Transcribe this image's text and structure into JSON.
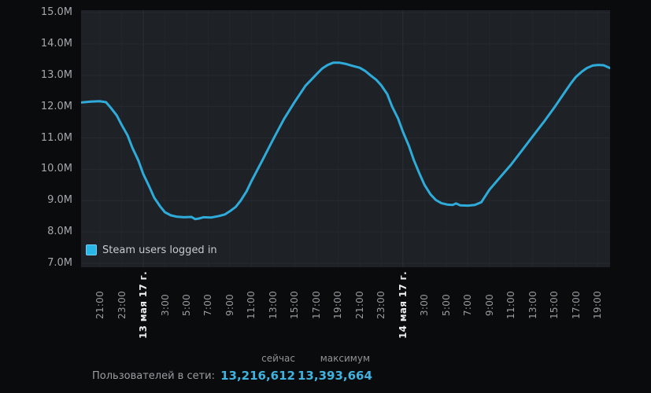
{
  "chart_data": {
    "type": "line",
    "title": "",
    "legend": {
      "label": "Steam users logged in",
      "position": "bottom-left-inside"
    },
    "series": [
      {
        "name": "Steam users logged in",
        "color": "#2fabda",
        "unit": "millions of users",
        "points": [
          [
            0,
            12.13
          ],
          [
            0.9,
            12.16
          ],
          [
            1.75,
            12.17
          ],
          [
            2.3,
            12.14
          ],
          [
            2.75,
            11.96
          ],
          [
            3.3,
            11.72
          ],
          [
            3.75,
            11.42
          ],
          [
            4.3,
            11.08
          ],
          [
            4.75,
            10.68
          ],
          [
            5.3,
            10.28
          ],
          [
            5.75,
            9.85
          ],
          [
            6.3,
            9.45
          ],
          [
            6.75,
            9.1
          ],
          [
            7.3,
            8.82
          ],
          [
            7.75,
            8.63
          ],
          [
            8.3,
            8.53
          ],
          [
            8.8,
            8.49
          ],
          [
            9.5,
            8.47
          ],
          [
            10.2,
            8.48
          ],
          [
            10.55,
            8.41
          ],
          [
            10.9,
            8.43
          ],
          [
            11.3,
            8.47
          ],
          [
            12,
            8.46
          ],
          [
            12.75,
            8.51
          ],
          [
            13.3,
            8.56
          ],
          [
            13.75,
            8.66
          ],
          [
            14.3,
            8.8
          ],
          [
            14.75,
            9.0
          ],
          [
            15.3,
            9.3
          ],
          [
            15.75,
            9.62
          ],
          [
            16.75,
            10.28
          ],
          [
            17.75,
            10.95
          ],
          [
            18.75,
            11.6
          ],
          [
            19.75,
            12.15
          ],
          [
            20.75,
            12.67
          ],
          [
            21.4,
            12.9
          ],
          [
            21.75,
            13.03
          ],
          [
            22.3,
            13.22
          ],
          [
            22.8,
            13.33
          ],
          [
            23.3,
            13.4
          ],
          [
            23.9,
            13.4
          ],
          [
            24.5,
            13.36
          ],
          [
            25.1,
            13.3
          ],
          [
            25.75,
            13.24
          ],
          [
            26.3,
            13.13
          ],
          [
            26.75,
            13.0
          ],
          [
            27.3,
            12.85
          ],
          [
            27.75,
            12.68
          ],
          [
            28.3,
            12.4
          ],
          [
            28.75,
            12.0
          ],
          [
            29.3,
            11.62
          ],
          [
            29.75,
            11.2
          ],
          [
            30.3,
            10.75
          ],
          [
            30.75,
            10.3
          ],
          [
            31.3,
            9.85
          ],
          [
            31.75,
            9.5
          ],
          [
            32.3,
            9.2
          ],
          [
            32.8,
            9.02
          ],
          [
            33.3,
            8.92
          ],
          [
            33.9,
            8.87
          ],
          [
            34.35,
            8.86
          ],
          [
            34.65,
            8.91
          ],
          [
            35.05,
            8.85
          ],
          [
            35.75,
            8.84
          ],
          [
            36.4,
            8.86
          ],
          [
            37,
            8.95
          ],
          [
            37.75,
            9.35
          ],
          [
            38.75,
            9.75
          ],
          [
            39.75,
            10.15
          ],
          [
            40.75,
            10.6
          ],
          [
            41.75,
            11.05
          ],
          [
            42.75,
            11.5
          ],
          [
            43.75,
            11.97
          ],
          [
            44.75,
            12.48
          ],
          [
            45.3,
            12.75
          ],
          [
            45.75,
            12.95
          ],
          [
            46.3,
            13.12
          ],
          [
            46.75,
            13.23
          ],
          [
            47.3,
            13.31
          ],
          [
            47.8,
            13.33
          ],
          [
            48.3,
            13.32
          ],
          [
            48.9,
            13.23
          ]
        ]
      }
    ],
    "y_axis": {
      "min": 7000000,
      "max": 15000000,
      "tick_step": 1000000,
      "grid": true,
      "tick_labels": [
        "15.0M",
        "14.0M",
        "13.0M",
        "12.0M",
        "11.0M",
        "10.0M",
        "9.0M",
        "8.0M",
        "7.0M"
      ]
    },
    "x_axis": {
      "span_hours": 48.9,
      "first_tick_hour": 1.75,
      "tick_interval_hours": 2,
      "ticks": [
        {
          "label": "21:00",
          "emph": false
        },
        {
          "label": "23:00",
          "emph": false
        },
        {
          "label": "13 мая 17 г.",
          "emph": true
        },
        {
          "label": "3:00",
          "emph": false
        },
        {
          "label": "5:00",
          "emph": false
        },
        {
          "label": "7:00",
          "emph": false
        },
        {
          "label": "9:00",
          "emph": false
        },
        {
          "label": "11:00",
          "emph": false
        },
        {
          "label": "13:00",
          "emph": false
        },
        {
          "label": "15:00",
          "emph": false
        },
        {
          "label": "17:00",
          "emph": false
        },
        {
          "label": "19:00",
          "emph": false
        },
        {
          "label": "21:00",
          "emph": false
        },
        {
          "label": "23:00",
          "emph": false
        },
        {
          "label": "14 мая 17 г.",
          "emph": true
        },
        {
          "label": "3:00",
          "emph": false
        },
        {
          "label": "5:00",
          "emph": false
        },
        {
          "label": "7:00",
          "emph": false
        },
        {
          "label": "9:00",
          "emph": false
        },
        {
          "label": "11:00",
          "emph": false
        },
        {
          "label": "13:00",
          "emph": false
        },
        {
          "label": "15:00",
          "emph": false
        },
        {
          "label": "17:00",
          "emph": false
        },
        {
          "label": "19:00",
          "emph": false
        }
      ]
    }
  },
  "stats": {
    "col_now": "сейчас",
    "col_max": "максимум",
    "row_label": "Пользователей в сети:",
    "now_value": "13,216,612",
    "max_value": "13,393,664"
  },
  "colors": {
    "page_bg": "#0a0b0d",
    "plot_bg": "#1e2227",
    "h_grid": "#272b31",
    "v_grid": "#23272c",
    "v_grid_date": "#2b3037",
    "line": "#2fabda",
    "legend_swatch": "#29b7e8",
    "value_text": "#3fb2df"
  }
}
